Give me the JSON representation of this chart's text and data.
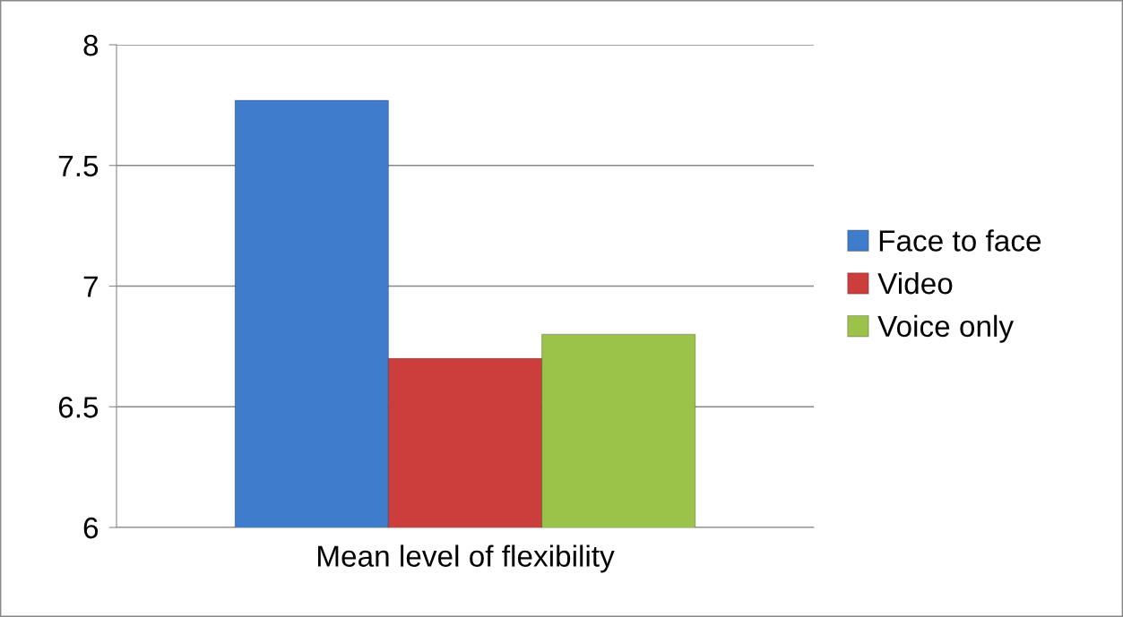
{
  "chart_data": {
    "type": "bar",
    "categories": [
      "Mean level of flexibility"
    ],
    "series": [
      {
        "name": "Face to face",
        "color": "#3f7ccc",
        "values": [
          7.77
        ]
      },
      {
        "name": "Video",
        "color": "#cc3e3b",
        "values": [
          6.7
        ]
      },
      {
        "name": "Voice only",
        "color": "#9bc34a",
        "values": [
          6.8
        ]
      }
    ],
    "ylim": [
      6,
      8
    ],
    "yticks": [
      6,
      6.5,
      7,
      7.5,
      8
    ],
    "grid": "y",
    "legend": "right"
  }
}
